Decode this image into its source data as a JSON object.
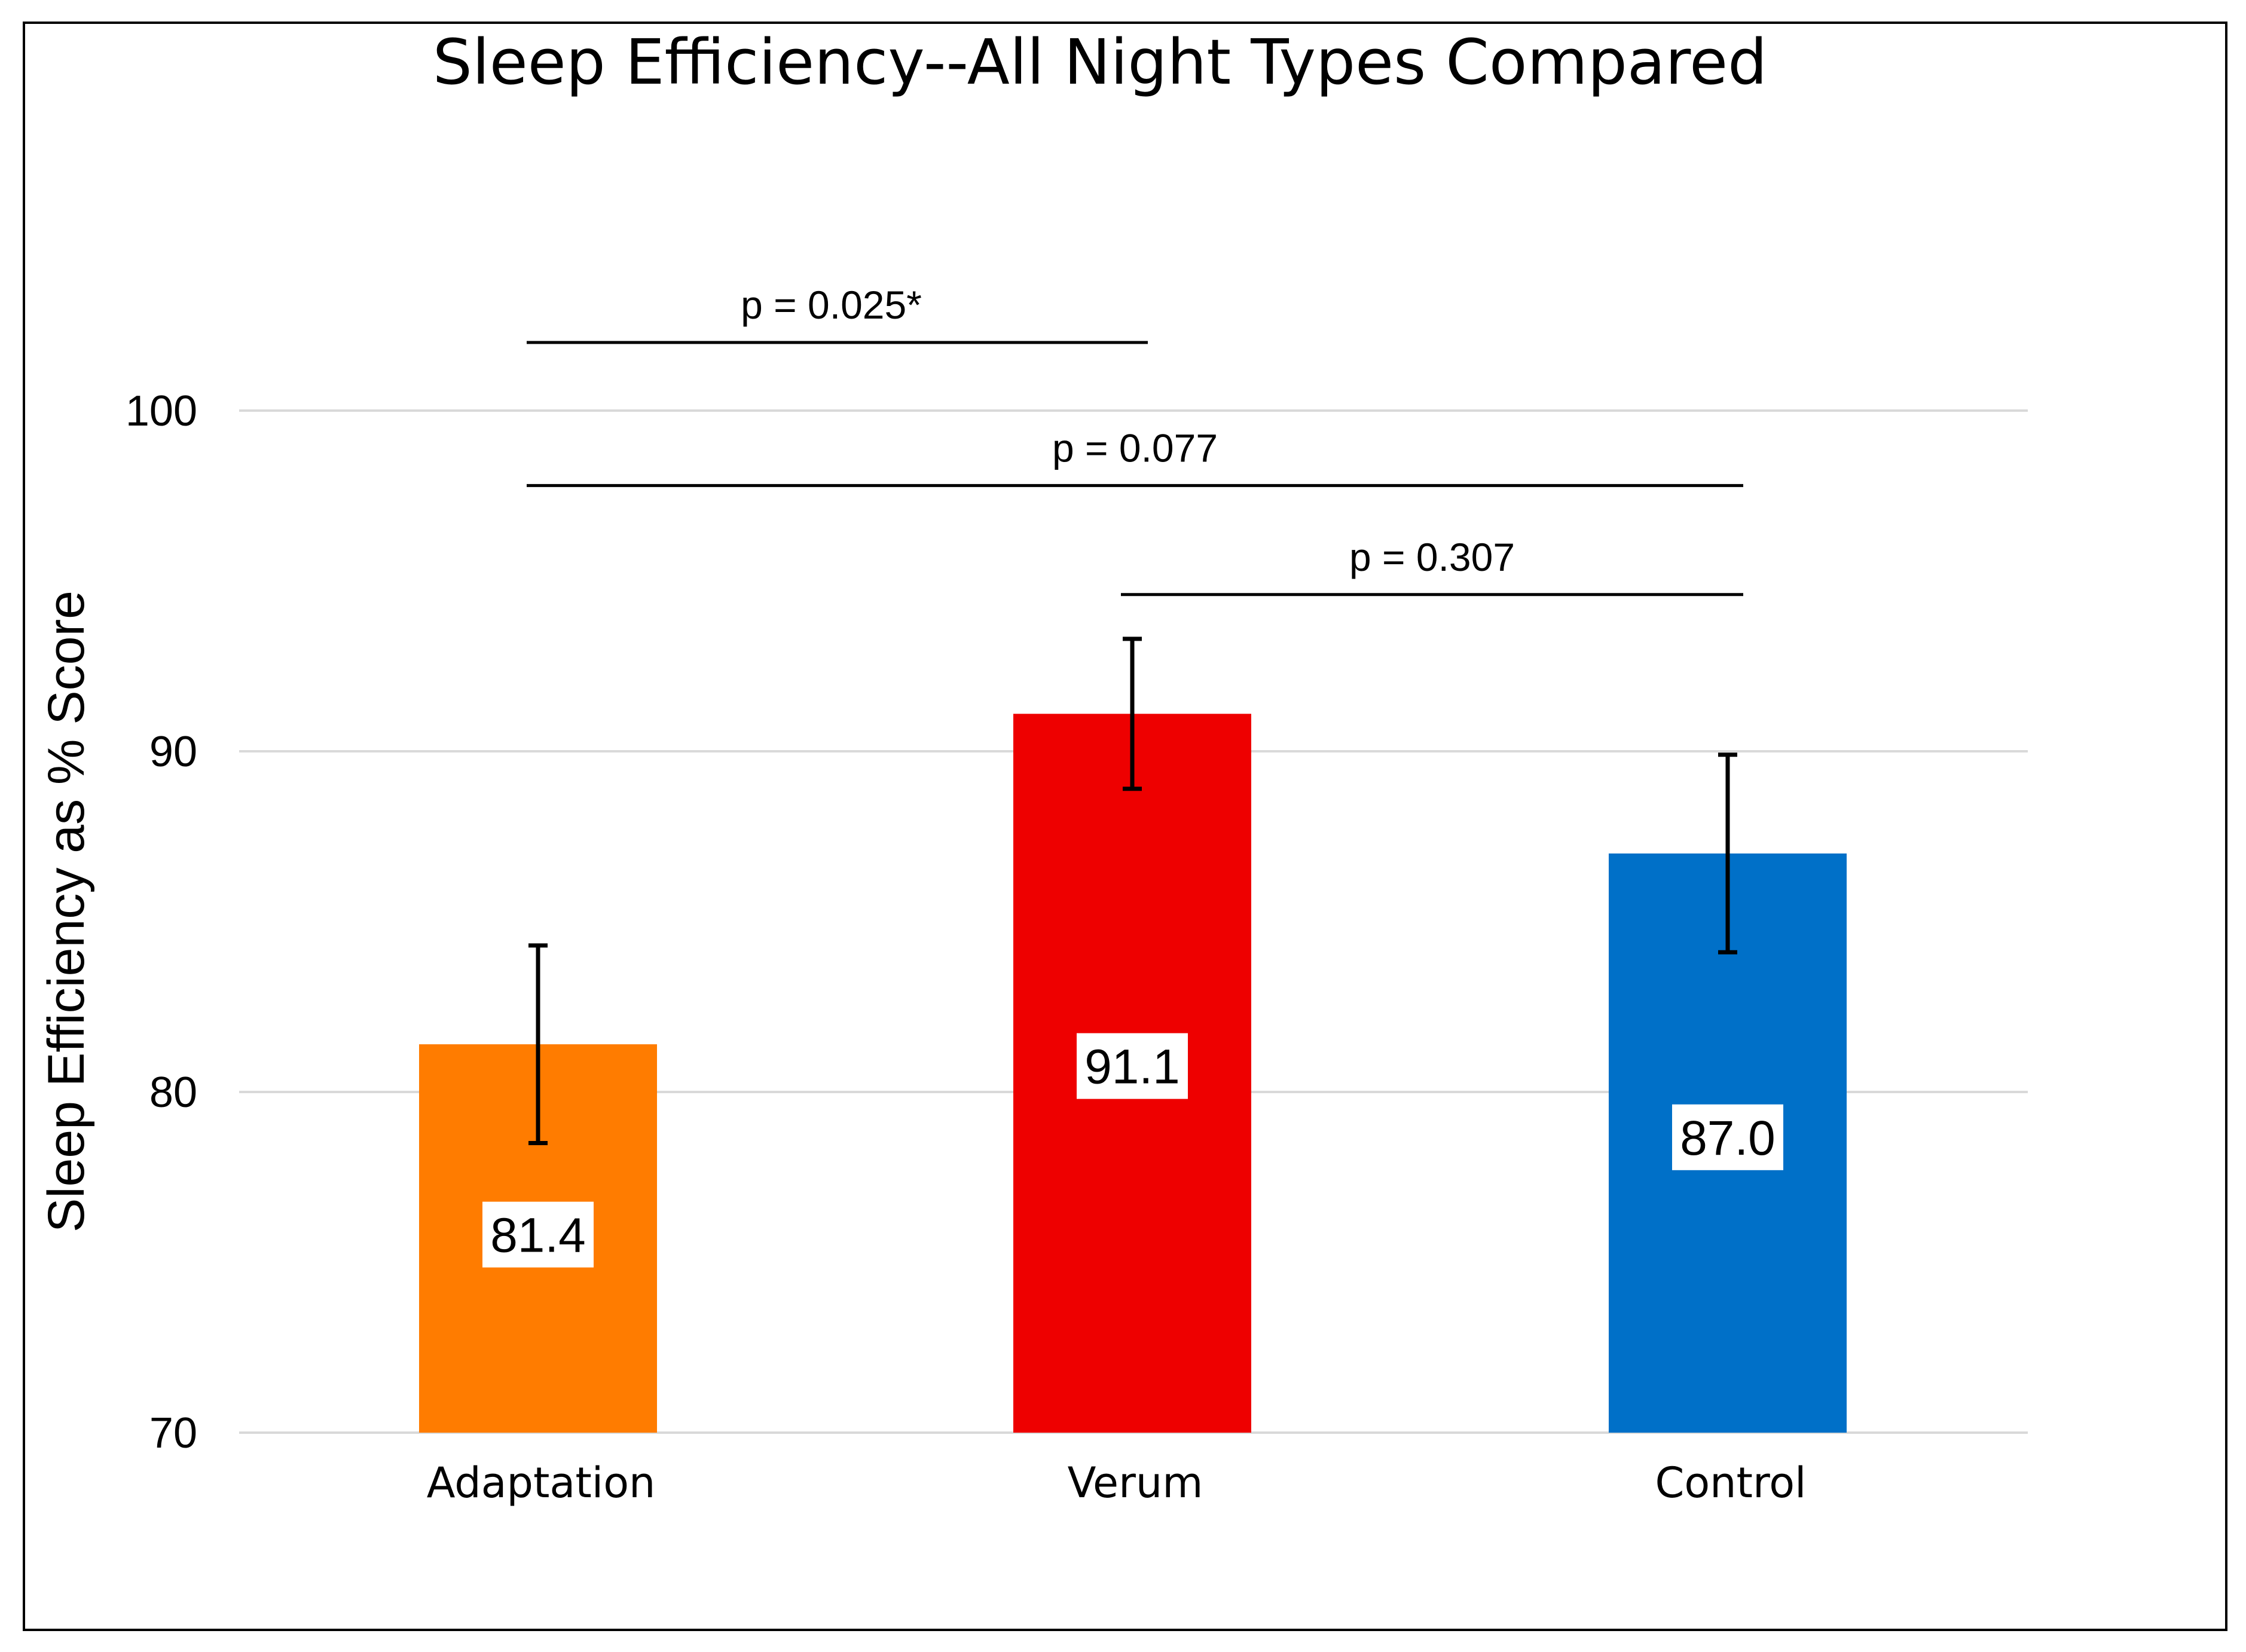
{
  "chart_data": {
    "type": "bar",
    "title": "Sleep Efficiency--All Night Types Compared",
    "xlabel": "",
    "ylabel": "Sleep Efficiency as % Score",
    "ylim": [
      70,
      104
    ],
    "yticks": [
      70,
      80,
      90,
      100
    ],
    "grid": true,
    "categories": [
      "Adaptation",
      "Verum",
      "Control"
    ],
    "values": [
      81.4,
      91.1,
      87.0
    ],
    "value_labels": [
      "81.4",
      "91.1",
      "87.0"
    ],
    "error": [
      2.9,
      2.2,
      2.9
    ],
    "colors": [
      "#FF7C00",
      "#EE0000",
      "#0070C8"
    ],
    "comparisons": [
      {
        "from": 0,
        "to": 1,
        "label": "p = 0.025*",
        "level": 102
      },
      {
        "from": 0,
        "to": 2,
        "label": "p = 0.077",
        "level": 97.8
      },
      {
        "from": 1,
        "to": 2,
        "label": "p = 0.307",
        "level": 94.6
      }
    ]
  }
}
